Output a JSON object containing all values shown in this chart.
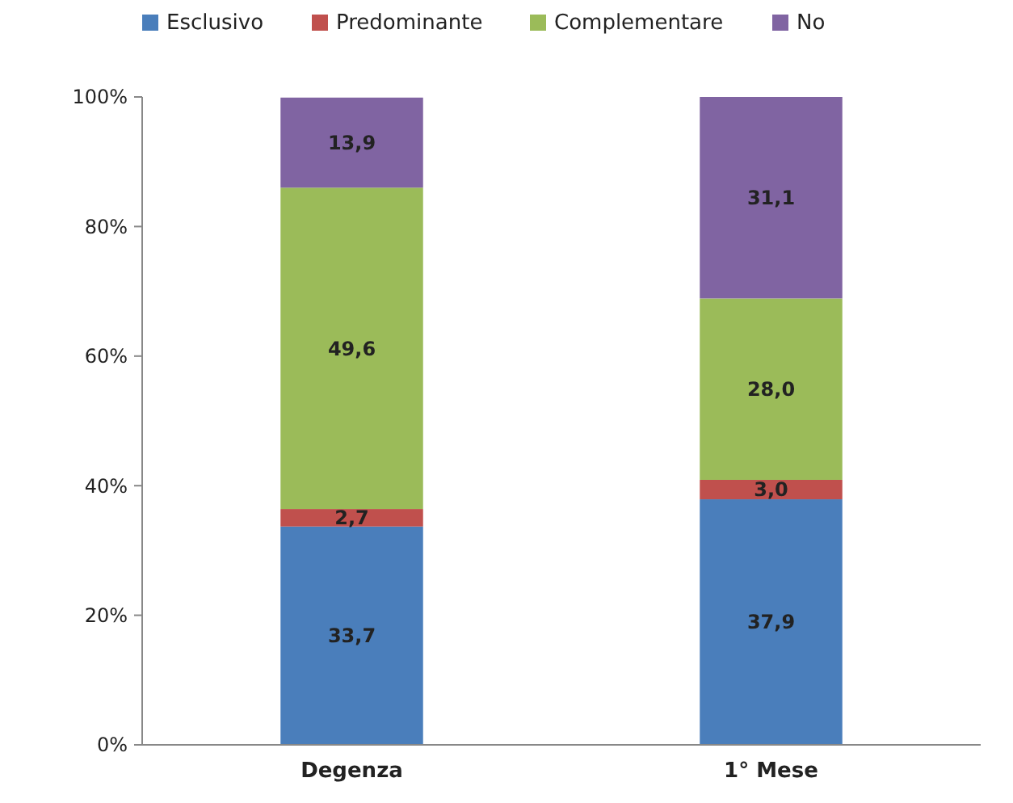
{
  "chart_data": {
    "type": "bar",
    "stacked": true,
    "categories": [
      "Degenza",
      "1° Mese"
    ],
    "series": [
      {
        "name": "Esclusivo",
        "color": "#4a7ebb",
        "values": [
          33.7,
          37.9
        ],
        "value_labels": [
          "33,7",
          "37,9"
        ]
      },
      {
        "name": "Predominante",
        "color": "#c0504d",
        "values": [
          2.7,
          3.0
        ],
        "value_labels": [
          "2,7",
          "3,0"
        ]
      },
      {
        "name": "Complementare",
        "color": "#9bbb59",
        "values": [
          49.6,
          28.0
        ],
        "value_labels": [
          "49,6",
          "28,0"
        ]
      },
      {
        "name": "No",
        "color": "#8064a2",
        "values": [
          13.9,
          31.1
        ],
        "value_labels": [
          "13,9",
          "31,1"
        ]
      }
    ],
    "ylim": [
      0,
      100
    ],
    "yticks": [
      {
        "value": 0,
        "label": "0%"
      },
      {
        "value": 20,
        "label": "20%"
      },
      {
        "value": 40,
        "label": "40%"
      },
      {
        "value": 60,
        "label": "60%"
      },
      {
        "value": 80,
        "label": "80%"
      },
      {
        "value": 100,
        "label": "100%"
      }
    ],
    "grid": false,
    "legend": "top"
  }
}
